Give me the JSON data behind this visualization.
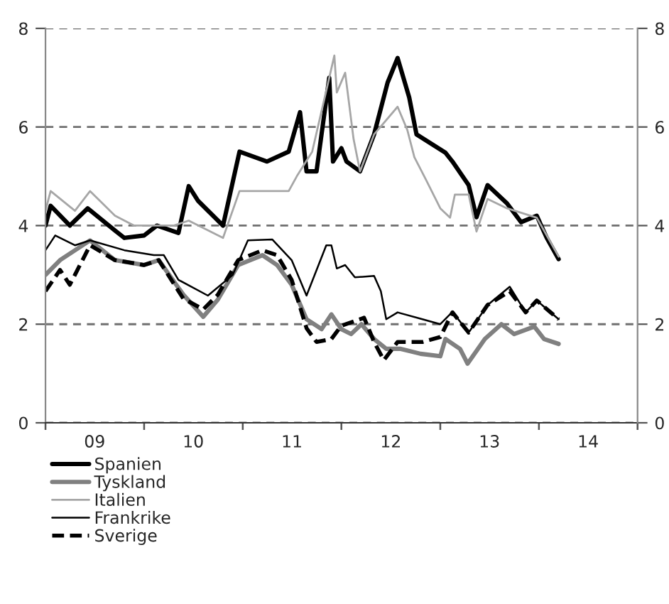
{
  "chart_data": {
    "type": "line",
    "legend": "bottom left",
    "grid": "y",
    "xlim": [
      "2009-01-01",
      "2015-01-01"
    ],
    "xticks": [
      {
        "value": "2009-01-01",
        "label": null
      },
      {
        "value": "2010-01-01",
        "label": null
      },
      {
        "value": "2011-01-01",
        "label": null
      },
      {
        "value": "2012-01-01",
        "label": null
      },
      {
        "value": "2013-01-01",
        "label": null
      },
      {
        "value": "2014-01-01",
        "label": null
      },
      {
        "value": "2015-01-01",
        "label": null
      },
      {
        "value": "2009-07-02",
        "label": "09"
      },
      {
        "value": "2010-07-02",
        "label": "10"
      },
      {
        "value": "2011-07-02",
        "label": "11"
      },
      {
        "value": "2012-07-02",
        "label": "12"
      },
      {
        "value": "2013-07-02",
        "label": "13"
      },
      {
        "value": "2014-07-02",
        "label": "14"
      }
    ],
    "ylim": [
      0,
      8
    ],
    "yticks": [
      0,
      2,
      4,
      6,
      8
    ],
    "y2lim": [
      0,
      8
    ],
    "y2ticks": [
      0,
      2,
      4,
      6,
      8
    ],
    "series": [
      {
        "name": "Spanien",
        "color": "#000000",
        "line_style": "solid",
        "x": [
          "2009-01-01",
          "2009-01-20",
          "2009-04-01",
          "2009-06-06",
          "2009-09-15",
          "2009-10-20",
          "2010-01-01",
          "2010-02-17",
          "2010-05-08",
          "2010-06-15",
          "2010-07-20",
          "2010-10-20",
          "2010-12-20",
          "2011-04-01",
          "2011-06-20",
          "2011-08-01",
          "2011-08-25",
          "2011-10-01",
          "2011-11-17",
          "2011-12-01",
          "2012-01-01",
          "2012-01-20",
          "2012-03-10",
          "2012-05-01",
          "2012-06-20",
          "2012-07-27",
          "2012-09-08",
          "2012-10-05",
          "2013-01-20",
          "2013-02-15",
          "2013-04-16",
          "2013-05-15",
          "2013-06-25",
          "2013-09-05",
          "2013-10-27",
          "2013-12-24",
          "2014-01-30",
          "2014-03-15"
        ],
        "values": [
          4.0,
          4.4,
          4.0,
          4.35,
          3.9,
          3.75,
          3.8,
          4.0,
          3.85,
          4.8,
          4.5,
          4.0,
          5.5,
          5.3,
          5.5,
          6.3,
          5.1,
          5.1,
          7.0,
          5.3,
          5.57,
          5.3,
          5.1,
          5.85,
          6.9,
          7.4,
          6.6,
          5.85,
          5.48,
          5.3,
          4.82,
          4.17,
          4.82,
          4.45,
          4.07,
          4.2,
          3.75,
          3.32
        ]
      },
      {
        "name": "Tyskland",
        "color": "#808080",
        "line_style": "solid",
        "x": [
          "2009-01-01",
          "2009-02-24",
          "2009-06-15",
          "2009-09-15",
          "2010-01-01",
          "2010-02-24",
          "2010-05-26",
          "2010-08-08",
          "2010-10-01",
          "2010-12-15",
          "2011-03-15",
          "2011-05-08",
          "2011-07-01",
          "2011-08-25",
          "2011-10-20",
          "2011-11-25",
          "2012-01-01",
          "2012-02-06",
          "2012-03-15",
          "2012-05-01",
          "2012-06-15",
          "2012-08-08",
          "2012-10-20",
          "2013-01-01",
          "2013-01-20",
          "2013-03-15",
          "2013-04-12",
          "2013-06-15",
          "2013-08-15",
          "2013-10-01",
          "2013-12-15",
          "2014-01-20",
          "2014-03-15"
        ],
        "values": [
          3.0,
          3.3,
          3.7,
          3.3,
          3.2,
          3.3,
          2.6,
          2.15,
          2.5,
          3.2,
          3.4,
          3.2,
          2.8,
          2.1,
          1.9,
          2.2,
          1.9,
          1.8,
          2.0,
          1.7,
          1.5,
          1.5,
          1.4,
          1.35,
          1.7,
          1.5,
          1.2,
          1.7,
          2.0,
          1.8,
          1.95,
          1.7,
          1.6
        ]
      },
      {
        "name": "Italien",
        "color": "#a6a6a6",
        "line_style": "solid",
        "x": [
          "2009-01-01",
          "2009-01-20",
          "2009-04-20",
          "2009-06-15",
          "2009-09-15",
          "2009-11-25",
          "2010-04-20",
          "2010-06-15",
          "2010-10-20",
          "2010-12-20",
          "2011-06-20",
          "2011-07-20",
          "2011-09-15",
          "2011-12-06",
          "2011-12-15",
          "2012-01-15",
          "2012-02-15",
          "2012-03-10",
          "2012-05-01",
          "2012-07-27",
          "2012-09-01",
          "2012-09-27",
          "2012-11-10",
          "2013-01-01",
          "2013-02-06",
          "2013-02-24",
          "2013-04-16",
          "2013-05-15",
          "2013-06-25",
          "2013-09-05",
          "2013-12-24",
          "2014-03-15"
        ],
        "values": [
          4.3,
          4.7,
          4.3,
          4.7,
          4.2,
          4.0,
          4.0,
          4.1,
          3.75,
          4.7,
          4.7,
          5.0,
          5.5,
          7.45,
          6.7,
          7.1,
          5.76,
          5.1,
          5.85,
          6.41,
          5.94,
          5.39,
          4.92,
          4.35,
          4.16,
          4.63,
          4.63,
          3.88,
          4.54,
          4.35,
          4.16,
          3.37
        ]
      },
      {
        "name": "Frankrike",
        "color": "#000000",
        "line_style": "solid",
        "x": [
          "2009-01-01",
          "2009-02-06",
          "2009-04-20",
          "2009-06-15",
          "2009-10-20",
          "2010-02-06",
          "2010-03-15",
          "2010-05-08",
          "2010-08-25",
          "2010-11-25",
          "2011-01-20",
          "2011-04-20",
          "2011-07-01",
          "2011-08-25",
          "2011-11-06",
          "2011-11-25",
          "2011-12-15",
          "2012-01-15",
          "2012-02-20",
          "2012-05-01",
          "2012-05-26",
          "2012-06-15",
          "2012-07-27",
          "2012-10-27",
          "2013-01-01",
          "2013-02-15",
          "2013-04-16",
          "2013-06-25",
          "2013-09-15",
          "2013-11-13",
          "2013-12-24",
          "2014-03-15"
        ],
        "values": [
          3.5,
          3.8,
          3.6,
          3.7,
          3.5,
          3.4,
          3.4,
          2.9,
          2.58,
          3.0,
          3.7,
          3.72,
          3.3,
          2.58,
          3.6,
          3.6,
          3.13,
          3.2,
          2.95,
          2.98,
          2.67,
          2.1,
          2.24,
          2.1,
          2.0,
          2.25,
          1.83,
          2.39,
          2.76,
          2.24,
          2.48,
          2.1
        ]
      },
      {
        "name": "Sverige",
        "color": "#000000",
        "line_style": "dashed",
        "x": [
          "2009-01-01",
          "2009-02-24",
          "2009-04-01",
          "2009-06-15",
          "2009-09-15",
          "2010-01-01",
          "2010-02-24",
          "2010-05-26",
          "2010-08-08",
          "2010-10-01",
          "2010-12-15",
          "2011-03-15",
          "2011-05-08",
          "2011-07-01",
          "2011-08-25",
          "2011-10-01",
          "2011-11-25",
          "2012-01-01",
          "2012-03-25",
          "2012-05-01",
          "2012-06-06",
          "2012-07-27",
          "2012-10-27",
          "2013-01-01",
          "2013-02-15",
          "2013-04-16",
          "2013-06-25",
          "2013-09-15",
          "2013-11-13",
          "2013-12-24",
          "2014-03-15"
        ],
        "values": [
          2.67,
          3.1,
          2.8,
          3.6,
          3.3,
          3.2,
          3.3,
          2.52,
          2.3,
          2.6,
          3.3,
          3.5,
          3.4,
          2.9,
          1.92,
          1.64,
          1.7,
          1.97,
          2.13,
          1.64,
          1.27,
          1.64,
          1.64,
          1.74,
          2.24,
          1.83,
          2.39,
          2.67,
          2.24,
          2.48,
          2.1
        ]
      }
    ]
  }
}
